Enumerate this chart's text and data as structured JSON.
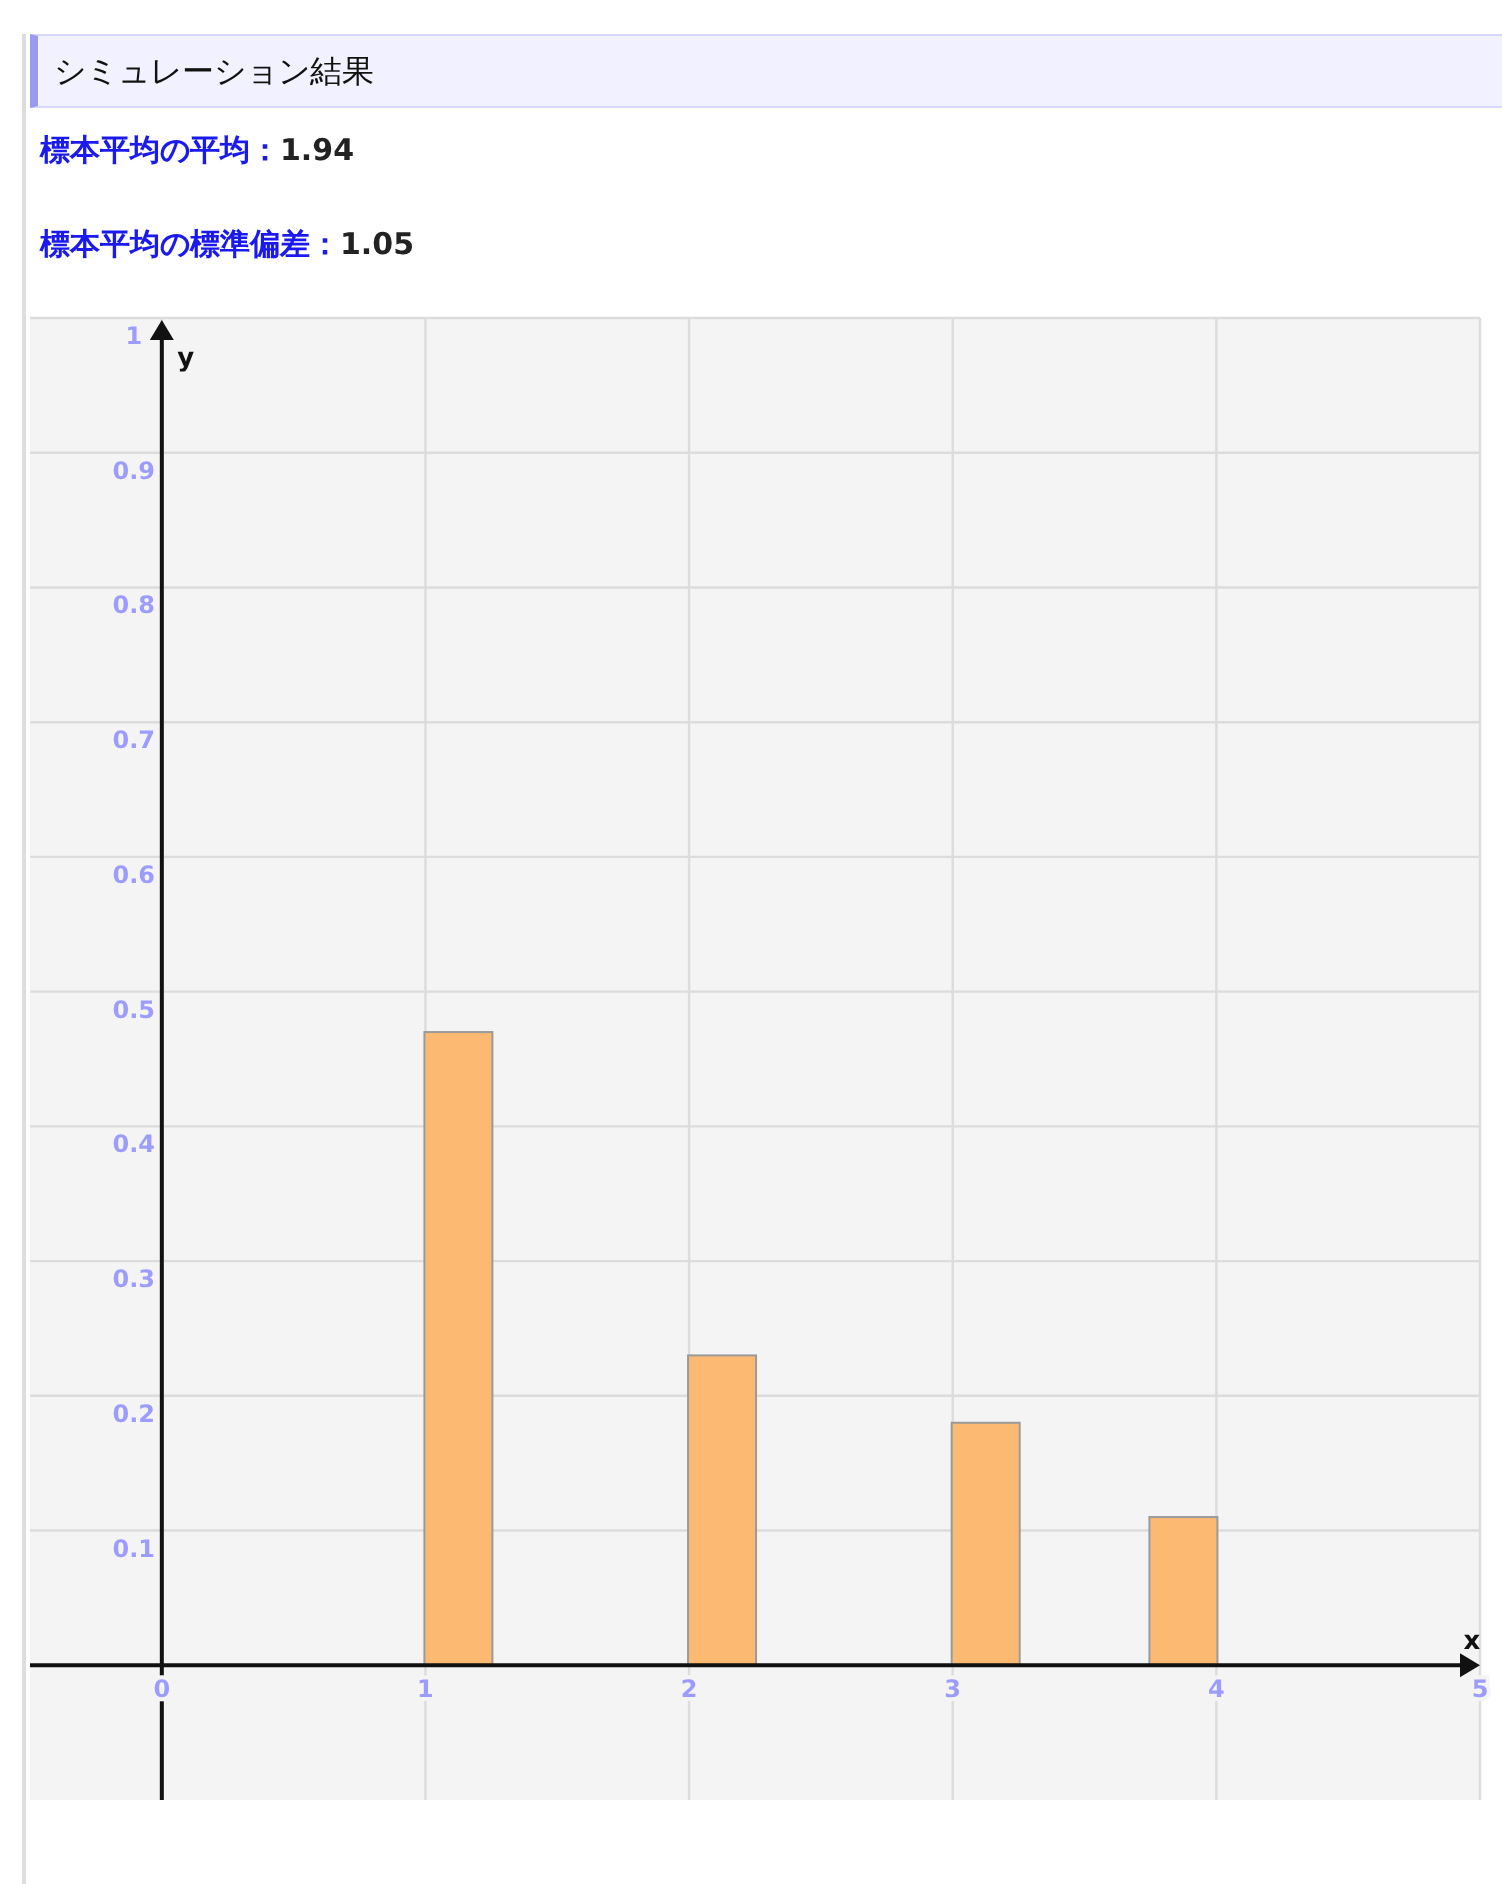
{
  "chart_data": {
    "type": "bar",
    "title": "シミュレーション結果",
    "annotations": [
      "標本平均の平均：1.94",
      "標本平均の標準偏差：1.05"
    ],
    "xlabel": "x",
    "ylabel": "y",
    "x": [
      1.125,
      2.125,
      3.125,
      3.875
    ],
    "values": [
      0.47,
      0.23,
      0.18,
      0.11
    ],
    "color": "#fbb971",
    "xlim": [
      -0.5,
      5
    ],
    "ylim": [
      -0.1,
      1
    ],
    "xticks": [
      0,
      1,
      2,
      3,
      4,
      5
    ],
    "yticks": [
      0.1,
      0.2,
      0.3,
      0.4,
      0.5,
      0.6,
      0.7,
      0.8,
      0.9,
      1
    ],
    "grid": true
  }
}
